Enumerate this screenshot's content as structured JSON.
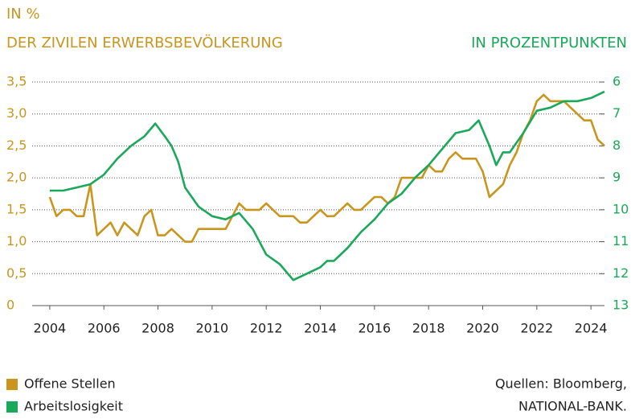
{
  "chart_data": {
    "type": "line",
    "ylabel_lines": [
      "IN %",
      "DER ZIVILEN ERWERBSBEVÖLKERUNG"
    ],
    "y2label": "IN PROZENTPUNKTEN",
    "source_lines": [
      "Quellen: Bloomberg,",
      "NATIONAL-BANK."
    ],
    "xlim": [
      2003.35,
      2024.5
    ],
    "xticks": [
      2004,
      2006,
      2008,
      2010,
      2012,
      2014,
      2016,
      2018,
      2020,
      2022,
      2024
    ],
    "ylim": [
      0,
      3.5
    ],
    "yticks": [
      0,
      {
        "value": 0.5,
        "label": "0,5"
      },
      {
        "value": 1,
        "label": "1,0"
      },
      {
        "value": 1.5,
        "label": "1,5"
      },
      {
        "value": 2,
        "label": "2,0"
      },
      {
        "value": 2.5,
        "label": "2,5"
      },
      {
        "value": 3,
        "label": "3,0"
      },
      {
        "value": 3.5,
        "label": "3,5"
      }
    ],
    "y2lim": [
      13,
      6
    ],
    "y2ticks": [
      6,
      7,
      8,
      9,
      10,
      11,
      12,
      13
    ],
    "grid": true,
    "series": [
      {
        "name": "Offene Stellen",
        "color": "#c8961e",
        "x": [
          2004,
          2004.25,
          2004.5,
          2004.75,
          2005,
          2005.25,
          2005.5,
          2005.75,
          2006,
          2006.25,
          2006.5,
          2006.75,
          2007,
          2007.25,
          2007.5,
          2007.75,
          2008,
          2008.25,
          2008.5,
          2008.75,
          2009,
          2009.25,
          2009.5,
          2009.75,
          2010,
          2010.25,
          2010.5,
          2010.75,
          2011,
          2011.25,
          2011.5,
          2011.75,
          2012,
          2012.25,
          2012.5,
          2012.75,
          2013,
          2013.25,
          2013.5,
          2013.75,
          2014,
          2014.25,
          2014.5,
          2014.75,
          2015,
          2015.25,
          2015.5,
          2015.75,
          2016,
          2016.25,
          2016.5,
          2016.75,
          2017,
          2017.25,
          2017.5,
          2017.75,
          2018,
          2018.25,
          2018.5,
          2018.75,
          2019,
          2019.25,
          2019.5,
          2019.75,
          2020,
          2020.25,
          2020.5,
          2020.75,
          2021,
          2021.25,
          2021.5,
          2021.75,
          2022,
          2022.25,
          2022.5,
          2022.75,
          2023,
          2023.25,
          2023.5,
          2023.75,
          2024,
          2024.25,
          2024.5
        ],
        "values": [
          1.7,
          1.4,
          1.5,
          1.5,
          1.4,
          1.4,
          1.9,
          1.1,
          1.2,
          1.3,
          1.1,
          1.3,
          1.2,
          1.1,
          1.4,
          1.5,
          1.1,
          1.1,
          1.2,
          1.1,
          1.0,
          1.0,
          1.2,
          1.2,
          1.2,
          1.2,
          1.2,
          1.4,
          1.6,
          1.5,
          1.5,
          1.5,
          1.6,
          1.5,
          1.4,
          1.4,
          1.4,
          1.3,
          1.3,
          1.4,
          1.5,
          1.4,
          1.4,
          1.5,
          1.6,
          1.5,
          1.5,
          1.6,
          1.7,
          1.7,
          1.6,
          1.7,
          2.0,
          2.0,
          2.0,
          2.0,
          2.2,
          2.1,
          2.1,
          2.3,
          2.4,
          2.3,
          2.3,
          2.3,
          2.1,
          1.7,
          1.8,
          1.9,
          2.2,
          2.4,
          2.7,
          2.9,
          3.2,
          3.3,
          3.2,
          3.2,
          3.2,
          3.1,
          3.0,
          2.9,
          2.9,
          2.6,
          2.5
        ]
      },
      {
        "name": "Arbeitslosigkeit",
        "color": "#1aa85a",
        "axis": "y2",
        "x": [
          2004,
          2004.5,
          2005,
          2005.5,
          2006,
          2006.5,
          2007,
          2007.5,
          2007.9,
          2008.25,
          2008.5,
          2008.75,
          2009,
          2009.5,
          2010,
          2010.5,
          2011,
          2011.5,
          2012,
          2012.5,
          2013,
          2013.5,
          2014,
          2014.25,
          2014.5,
          2015,
          2015.5,
          2016,
          2016.5,
          2017,
          2017.5,
          2018,
          2018.5,
          2019,
          2019.5,
          2019.85,
          2020.25,
          2020.5,
          2020.75,
          2021,
          2021.5,
          2022,
          2022.5,
          2023,
          2023.5,
          2024,
          2024.5
        ],
        "values": [
          9.4,
          9.4,
          9.3,
          9.2,
          8.9,
          8.4,
          8.0,
          7.7,
          7.3,
          7.7,
          8.0,
          8.5,
          9.3,
          9.9,
          10.2,
          10.3,
          10.1,
          10.6,
          11.4,
          11.7,
          12.2,
          12.0,
          11.8,
          11.6,
          11.6,
          11.2,
          10.7,
          10.3,
          9.8,
          9.5,
          9.0,
          8.6,
          8.1,
          7.6,
          7.5,
          7.2,
          8.0,
          8.6,
          8.2,
          8.2,
          7.6,
          6.9,
          6.8,
          6.6,
          6.6,
          6.5,
          6.3
        ]
      }
    ]
  }
}
